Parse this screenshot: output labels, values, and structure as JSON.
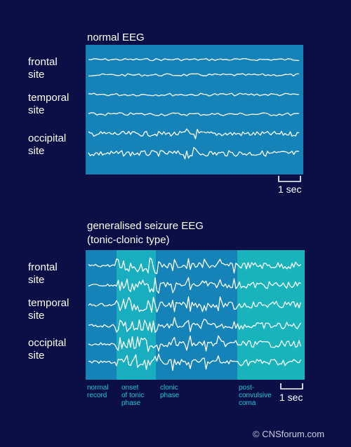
{
  "normal": {
    "title": "normal EEG",
    "sites": [
      "frontal\nsite",
      "temporal\nsite",
      "occipital\nsite"
    ],
    "scale": "1 sec"
  },
  "seizure": {
    "title_line1": "generalised seizure EEG",
    "title_line2": "(tonic-clonic type)",
    "sites": [
      "frontal\nsite",
      "temporal\nsite",
      "occipital\nsite"
    ],
    "phases": [
      {
        "label": "normal\nrecord"
      },
      {
        "label": "onset\nof tonic\nphase"
      },
      {
        "label": "clonic\nphase"
      },
      {
        "label": "post-\nconvulsive\ncoma"
      }
    ],
    "scale": "1 sec"
  },
  "credit": "© CNSforum.com",
  "colors": {
    "background": "#0b0f45",
    "panel": "#1683b8",
    "tonic": "#19aebf",
    "coma": "#19b3bb",
    "phase_text": "#18c8d8",
    "trace": "#ffffff"
  }
}
